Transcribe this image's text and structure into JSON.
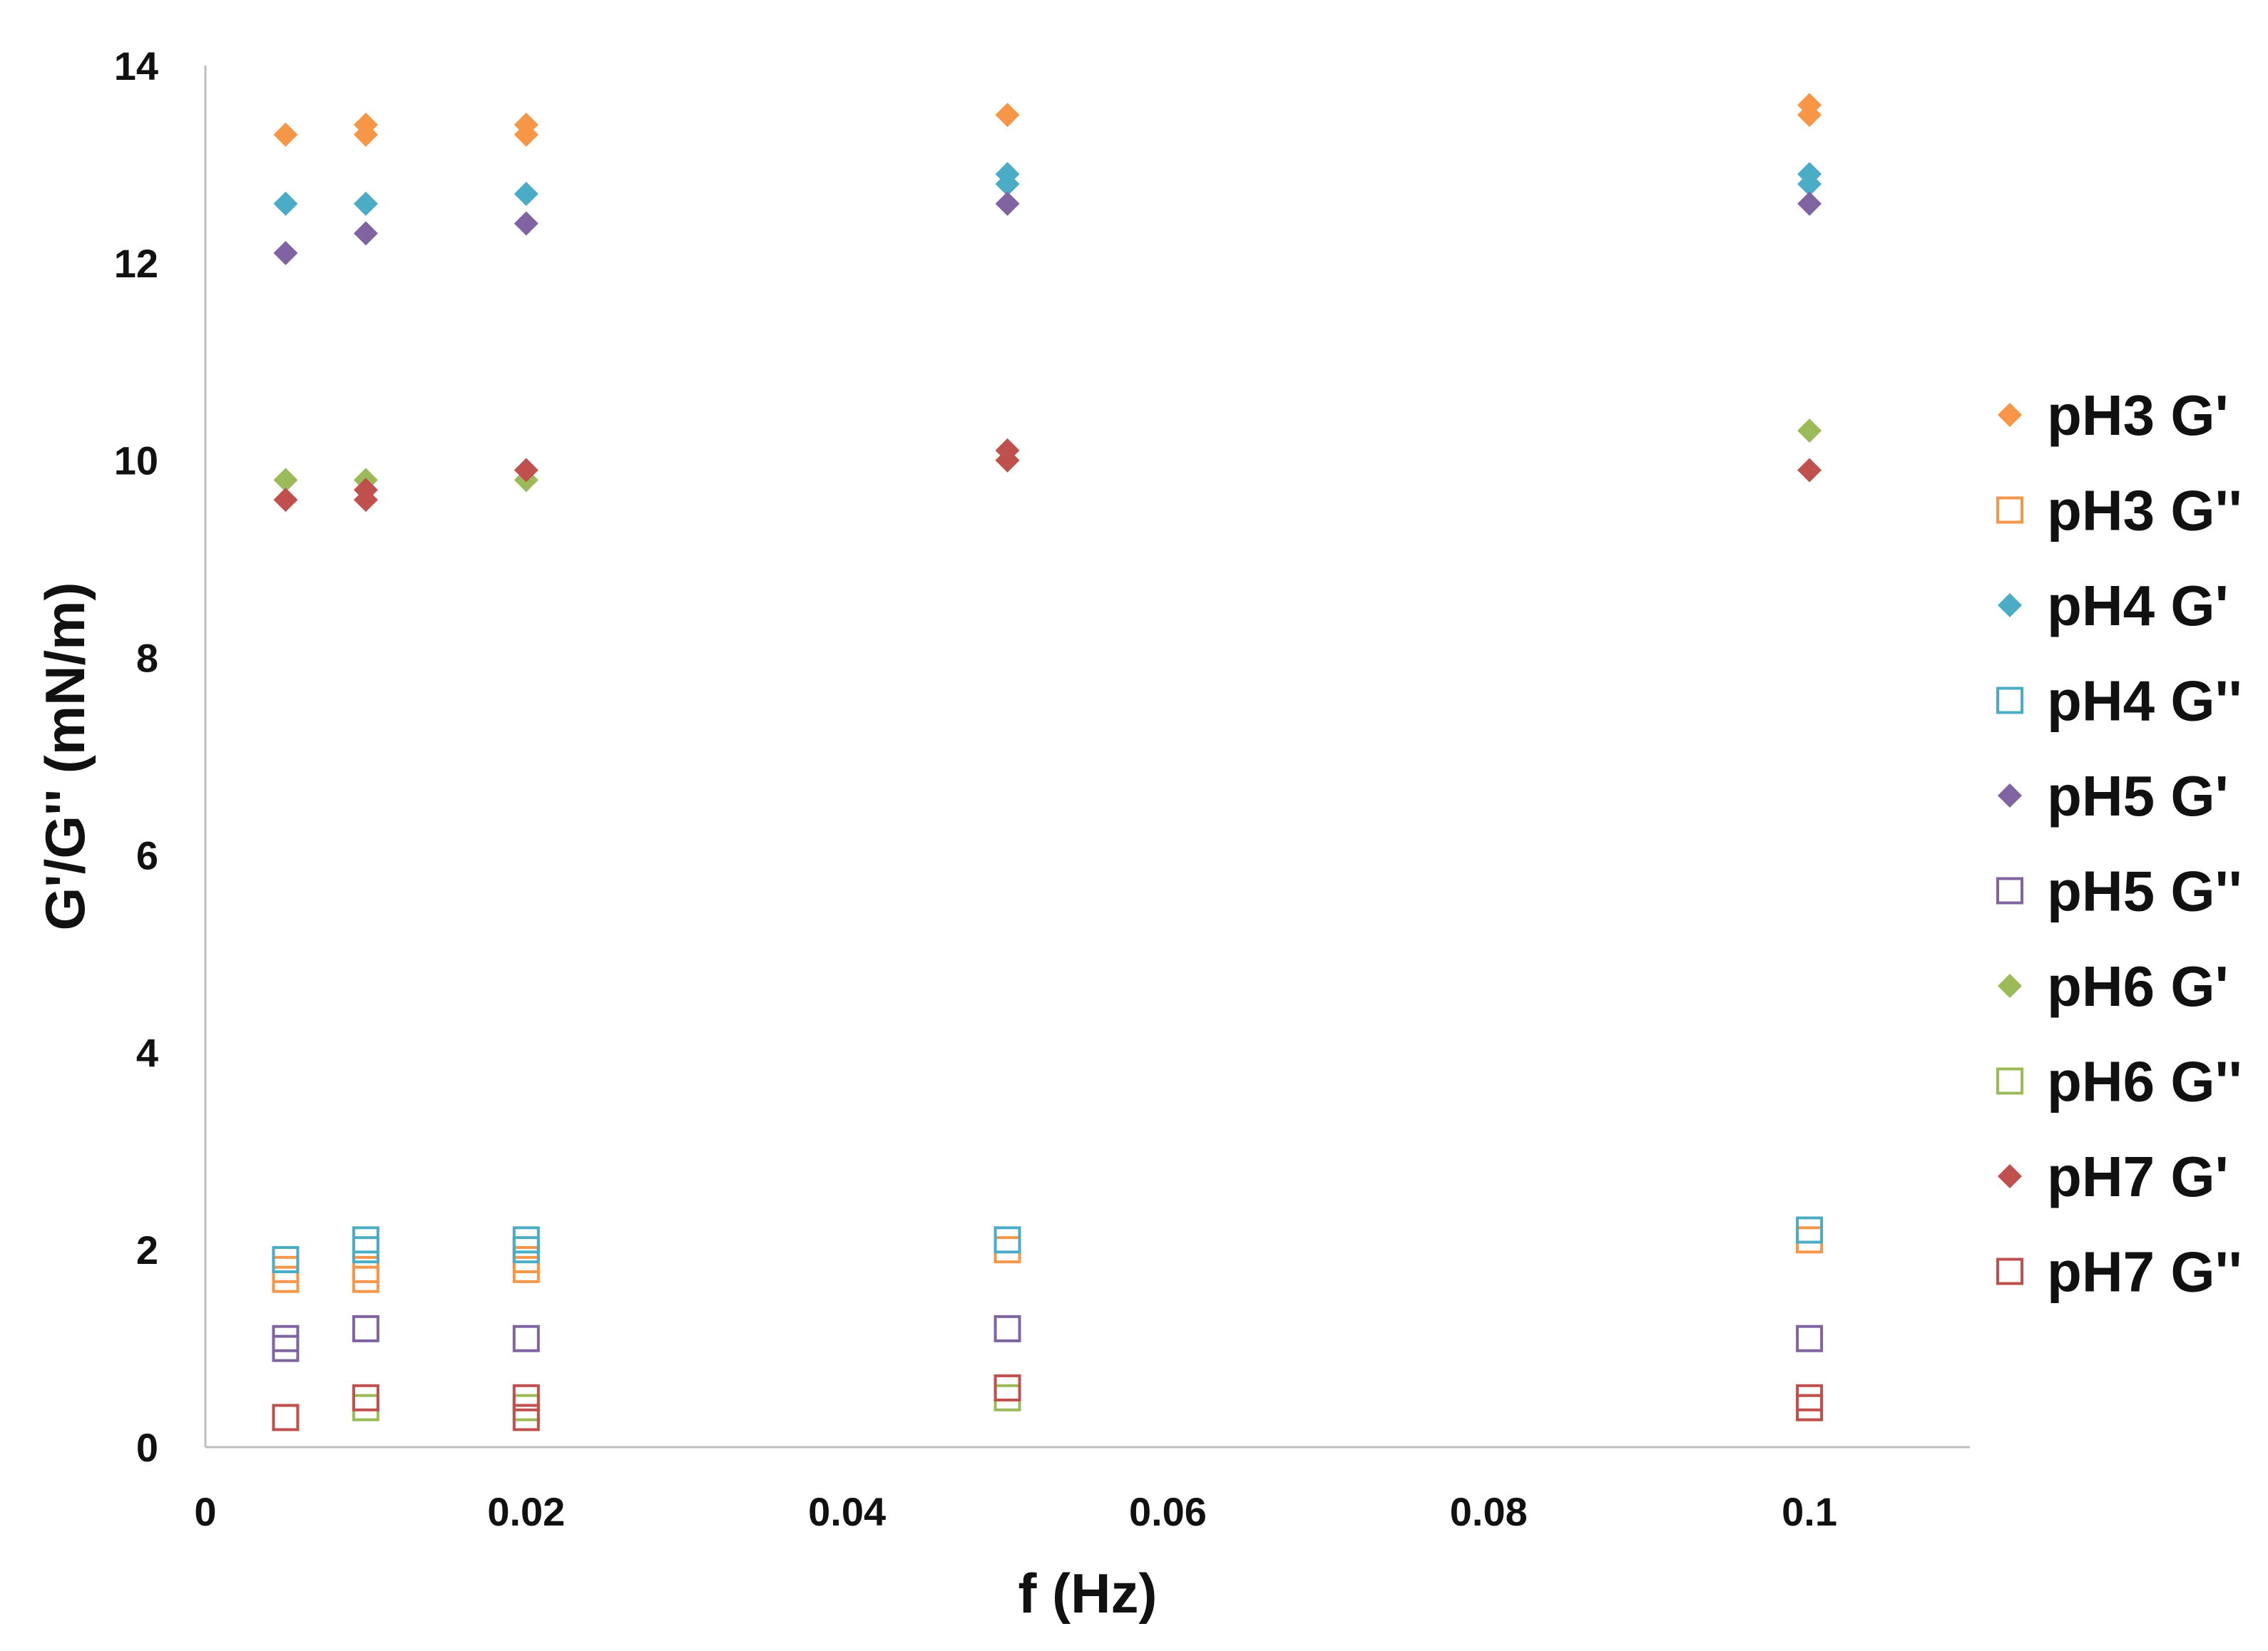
{
  "chart_data": {
    "type": "scatter",
    "title": "",
    "xlabel": "f (Hz)",
    "ylabel": "G'/G'' (mN/m)",
    "xlim": [
      0,
      0.11
    ],
    "ylim": [
      0,
      14
    ],
    "xticks": [
      0,
      0.02,
      0.04,
      0.06,
      0.08,
      0.1
    ],
    "xtick_labels": [
      "0",
      "0.02",
      "0.04",
      "0.06",
      "0.08",
      "0.1"
    ],
    "yticks": [
      0,
      2,
      4,
      6,
      8,
      10,
      12,
      14
    ],
    "ytick_labels": [
      "0",
      "2",
      "4",
      "6",
      "8",
      "10",
      "12",
      "14"
    ],
    "grid": false,
    "legend_position": "right",
    "series": [
      {
        "name": "pH3 G'",
        "marker": "diamond-filled",
        "color": "#F79646",
        "points": [
          [
            0.005,
            13.3
          ],
          [
            0.01,
            13.3
          ],
          [
            0.01,
            13.4
          ],
          [
            0.02,
            13.3
          ],
          [
            0.02,
            13.4
          ],
          [
            0.05,
            13.5
          ],
          [
            0.1,
            13.5
          ],
          [
            0.1,
            13.6
          ]
        ]
      },
      {
        "name": "pH3 G''",
        "marker": "square-open",
        "color": "#F79646",
        "points": [
          [
            0.005,
            1.7
          ],
          [
            0.005,
            1.8
          ],
          [
            0.01,
            1.7
          ],
          [
            0.01,
            1.8
          ],
          [
            0.02,
            1.8
          ],
          [
            0.02,
            1.9
          ],
          [
            0.05,
            2.0
          ],
          [
            0.1,
            2.1
          ]
        ]
      },
      {
        "name": "pH4 G'",
        "marker": "diamond-filled",
        "color": "#4BACC6",
        "points": [
          [
            0.005,
            12.6
          ],
          [
            0.01,
            12.6
          ],
          [
            0.02,
            12.7
          ],
          [
            0.05,
            12.8
          ],
          [
            0.05,
            12.9
          ],
          [
            0.1,
            12.8
          ],
          [
            0.1,
            12.9
          ]
        ]
      },
      {
        "name": "pH4 G''",
        "marker": "square-open",
        "color": "#4BACC6",
        "points": [
          [
            0.005,
            1.9
          ],
          [
            0.01,
            2.0
          ],
          [
            0.01,
            2.1
          ],
          [
            0.02,
            2.0
          ],
          [
            0.02,
            2.1
          ],
          [
            0.05,
            2.1
          ],
          [
            0.1,
            2.2
          ]
        ]
      },
      {
        "name": "pH5 G'",
        "marker": "diamond-filled",
        "color": "#8064A2",
        "points": [
          [
            0.005,
            12.1
          ],
          [
            0.01,
            12.3
          ],
          [
            0.02,
            12.4
          ],
          [
            0.05,
            12.6
          ],
          [
            0.1,
            12.6
          ]
        ]
      },
      {
        "name": "pH5 G''",
        "marker": "square-open",
        "color": "#8064A2",
        "points": [
          [
            0.005,
            1.0
          ],
          [
            0.005,
            1.1
          ],
          [
            0.01,
            1.2
          ],
          [
            0.02,
            1.1
          ],
          [
            0.05,
            1.2
          ],
          [
            0.1,
            1.1
          ]
        ]
      },
      {
        "name": "pH6 G'",
        "marker": "diamond-filled",
        "color": "#9BBB59",
        "points": [
          [
            0.005,
            9.8
          ],
          [
            0.01,
            9.8
          ],
          [
            0.02,
            9.8
          ],
          [
            0.05,
            10.0
          ],
          [
            0.1,
            10.3
          ]
        ]
      },
      {
        "name": "pH6 G''",
        "marker": "square-open",
        "color": "#9BBB59",
        "points": [
          [
            0.005,
            0.3
          ],
          [
            0.01,
            0.4
          ],
          [
            0.02,
            0.4
          ],
          [
            0.05,
            0.5
          ],
          [
            0.1,
            0.4
          ]
        ]
      },
      {
        "name": "pH7 G'",
        "marker": "diamond-filled",
        "color": "#C0504D",
        "points": [
          [
            0.005,
            9.6
          ],
          [
            0.01,
            9.6
          ],
          [
            0.01,
            9.7
          ],
          [
            0.02,
            9.9
          ],
          [
            0.05,
            10.0
          ],
          [
            0.05,
            10.1
          ],
          [
            0.1,
            9.9
          ]
        ]
      },
      {
        "name": "pH7 G''",
        "marker": "square-open",
        "color": "#C0504D",
        "points": [
          [
            0.005,
            0.3
          ],
          [
            0.01,
            0.5
          ],
          [
            0.02,
            0.3
          ],
          [
            0.02,
            0.5
          ],
          [
            0.05,
            0.6
          ],
          [
            0.1,
            0.4
          ],
          [
            0.1,
            0.5
          ]
        ]
      }
    ]
  }
}
